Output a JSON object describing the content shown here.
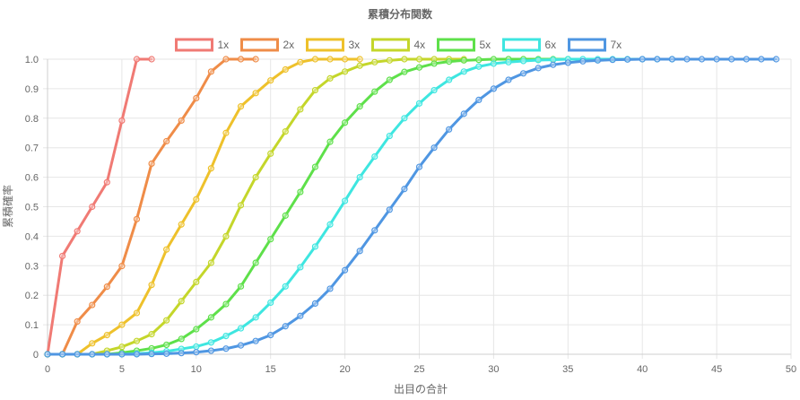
{
  "chart_data": {
    "type": "line",
    "title": "累積分布関数",
    "xlabel": "出目の合計",
    "ylabel": "累積確率",
    "xlim": [
      0,
      50
    ],
    "ylim": [
      0,
      1.0
    ],
    "x_ticks": [
      "0",
      "5",
      "10",
      "15",
      "20",
      "25",
      "30",
      "35",
      "40",
      "45",
      "50"
    ],
    "y_ticks": [
      "0",
      "0.1",
      "0.2",
      "0.3",
      "0.4",
      "0.5",
      "0.6",
      "0.7",
      "0.8",
      "0.9",
      "1.0"
    ],
    "grid": true,
    "legend_position": "top",
    "series": [
      {
        "name": "1x",
        "color": "#f07a74",
        "x": [
          0,
          1,
          2,
          3,
          4,
          5,
          6,
          7
        ],
        "values": [
          0,
          0.333,
          0.417,
          0.5,
          0.583,
          0.792,
          1.0,
          1.0
        ]
      },
      {
        "name": "2x",
        "color": "#ef8c48",
        "x": [
          0,
          1,
          2,
          3,
          4,
          5,
          6,
          7,
          8,
          9,
          10,
          11,
          12,
          13,
          14
        ],
        "values": [
          0,
          0,
          0.111,
          0.167,
          0.229,
          0.299,
          0.458,
          0.646,
          0.722,
          0.792,
          0.868,
          0.958,
          1.0,
          1.0,
          1.0
        ]
      },
      {
        "name": "3x",
        "color": "#eec12b",
        "x": [
          0,
          1,
          2,
          3,
          4,
          5,
          6,
          7,
          8,
          9,
          10,
          11,
          12,
          13,
          14,
          15,
          16,
          17,
          18,
          19,
          20,
          21
        ],
        "values": [
          0,
          0,
          0,
          0.037,
          0.065,
          0.1,
          0.14,
          0.235,
          0.355,
          0.44,
          0.525,
          0.63,
          0.75,
          0.84,
          0.885,
          0.928,
          0.965,
          0.99,
          1.0,
          1.0,
          1.0,
          1.0
        ]
      },
      {
        "name": "4x",
        "color": "#c4d62a",
        "x": [
          0,
          1,
          2,
          3,
          4,
          5,
          6,
          7,
          8,
          9,
          10,
          11,
          12,
          13,
          14,
          15,
          16,
          17,
          18,
          19,
          20,
          21,
          22,
          23,
          24,
          25,
          26,
          27,
          28
        ],
        "values": [
          0,
          0,
          0,
          0,
          0.012,
          0.025,
          0.045,
          0.068,
          0.115,
          0.18,
          0.245,
          0.31,
          0.4,
          0.505,
          0.6,
          0.68,
          0.755,
          0.83,
          0.895,
          0.935,
          0.958,
          0.978,
          0.99,
          0.996,
          1.0,
          1.0,
          1.0,
          1.0,
          1.0
        ]
      },
      {
        "name": "5x",
        "color": "#5ee04a",
        "x": [
          0,
          1,
          2,
          3,
          4,
          5,
          6,
          7,
          8,
          9,
          10,
          11,
          12,
          13,
          14,
          15,
          16,
          17,
          18,
          19,
          20,
          21,
          22,
          23,
          24,
          25,
          26,
          27,
          28,
          29,
          30,
          31,
          32,
          33,
          34,
          35
        ],
        "values": [
          0,
          0,
          0,
          0,
          0,
          0.005,
          0.012,
          0.02,
          0.032,
          0.052,
          0.085,
          0.125,
          0.17,
          0.23,
          0.31,
          0.39,
          0.47,
          0.55,
          0.635,
          0.72,
          0.785,
          0.84,
          0.89,
          0.93,
          0.957,
          0.972,
          0.985,
          0.992,
          0.996,
          0.998,
          1.0,
          1.0,
          1.0,
          1.0,
          1.0,
          1.0
        ]
      },
      {
        "name": "6x",
        "color": "#3ee6e0",
        "x": [
          0,
          1,
          2,
          3,
          4,
          5,
          6,
          7,
          8,
          9,
          10,
          11,
          12,
          13,
          14,
          15,
          16,
          17,
          18,
          19,
          20,
          21,
          22,
          23,
          24,
          25,
          26,
          27,
          28,
          29,
          30,
          31,
          32,
          33,
          34,
          35,
          36,
          37,
          38,
          39,
          40,
          41,
          42
        ],
        "values": [
          0,
          0,
          0,
          0,
          0,
          0,
          0.002,
          0.005,
          0.01,
          0.018,
          0.026,
          0.04,
          0.062,
          0.088,
          0.125,
          0.175,
          0.23,
          0.295,
          0.365,
          0.44,
          0.52,
          0.6,
          0.67,
          0.74,
          0.8,
          0.85,
          0.895,
          0.93,
          0.958,
          0.975,
          0.985,
          0.99,
          0.994,
          0.997,
          0.998,
          1.0,
          1.0,
          1.0,
          1.0,
          1.0,
          1.0,
          1.0,
          1.0
        ]
      },
      {
        "name": "7x",
        "color": "#4f96e2",
        "x": [
          0,
          1,
          2,
          3,
          4,
          5,
          6,
          7,
          8,
          9,
          10,
          11,
          12,
          13,
          14,
          15,
          16,
          17,
          18,
          19,
          20,
          21,
          22,
          23,
          24,
          25,
          26,
          27,
          28,
          29,
          30,
          31,
          32,
          33,
          34,
          35,
          36,
          37,
          38,
          39,
          40,
          41,
          42,
          43,
          44,
          45,
          46,
          47,
          48,
          49
        ],
        "values": [
          0,
          0,
          0,
          0,
          0,
          0,
          0,
          0.001,
          0.002,
          0.004,
          0.007,
          0.012,
          0.019,
          0.03,
          0.045,
          0.065,
          0.095,
          0.13,
          0.172,
          0.222,
          0.285,
          0.35,
          0.42,
          0.49,
          0.56,
          0.635,
          0.7,
          0.762,
          0.815,
          0.862,
          0.9,
          0.93,
          0.952,
          0.97,
          0.981,
          0.988,
          0.993,
          0.996,
          0.998,
          0.999,
          1.0,
          1.0,
          1.0,
          1.0,
          1.0,
          1.0,
          1.0,
          1.0,
          1.0,
          1.0
        ]
      }
    ]
  }
}
